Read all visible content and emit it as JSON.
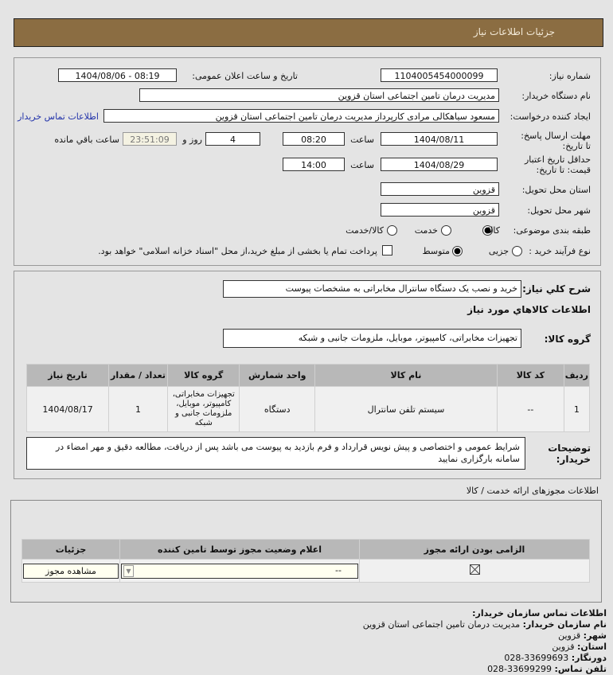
{
  "header": {
    "title": "جزئیات اطلاعات نیاز"
  },
  "form": {
    "need_number_label": "شماره نیاز:",
    "need_number": "1104005454000099",
    "announce_label": "تاریخ و ساعت اعلان عمومی:",
    "announce_value": "1404/08/06 - 08:19",
    "buyer_label": "نام دستگاه خریدار:",
    "buyer_value": "مدیریت درمان تامین اجتماعی استان قزوین",
    "creator_label": "ایجاد کننده درخواست:",
    "creator_value": "مسعود سیاهکالی مرادی کارپرداز مدیریت درمان تامین اجتماعی استان قزوین",
    "contact_link": "اطلاعات تماس خریدار",
    "deadline_label": "مهلت ارسال پاسخ: تا تاریخ:",
    "deadline_date": "1404/08/11",
    "time_label": "ساعت",
    "deadline_time": "08:20",
    "days": "4",
    "days_label": "روز و",
    "remaining": "23:51:09",
    "remaining_label": "ساعت باقي مانده",
    "validity_label": "حداقل تاریخ اعتبار قیمت: تا تاریخ:",
    "validity_date": "1404/08/29",
    "validity_time": "14:00",
    "province_label": "استان محل تحویل:",
    "province": "قزوین",
    "city_label": "شهر محل تحویل:",
    "city": "قزوین",
    "category_label": "طبقه بندی موضوعی:",
    "category_options": [
      "کالا",
      "خدمت",
      "کالا/خدمت"
    ],
    "category_selected": "کالا",
    "process_label": "نوع فرآیند خرید :",
    "process_options": [
      "جزیی",
      "متوسط"
    ],
    "process_selected": "متوسط",
    "payment_note": "پرداخت تمام یا بخشی از مبلغ خرید،از محل \"اسناد خزانه اسلامی\" خواهد بود."
  },
  "need": {
    "desc_label": "شرح کلي نیاز:",
    "desc": "خرید و نصب یک دستگاه سانترال مخابراتی به مشخصات پیوست",
    "goods_title": "اطلاعات کالاهاي مورد نیاز",
    "group_label": "گروه کالا:",
    "group": "تجهیزات مخابراتی، کامپیوتر، موبایل، ملزومات جانبی و شبکه",
    "columns": [
      "ردیف",
      "کد کالا",
      "نام کالا",
      "واحد شمارش",
      "گروه کالا",
      "تعداد / مقدار",
      "تاریخ نیاز"
    ],
    "rows": [
      [
        "1",
        "--",
        "سیستم تلفن سانترال",
        "دستگاه",
        "تجهیزات مخابراتی، کامپیوتر، موبایل، ملزومات جانبی و شبکه",
        "1",
        "1404/08/17"
      ]
    ],
    "notes_label": "توضیحات خریدار:",
    "notes": "شرایط عمومی و اختصاصی و پیش نویس قرارداد و فرم بازدید به پیوست می باشد پس از دریافت، مطالعه دقیق و مهر امضاء در سامانه بارگزاری نمایید"
  },
  "license": {
    "title": "اطلاعات مجوزهای ارائه خدمت / کالا",
    "columns": [
      "الزامی بودن ارائه مجوز",
      "اعلام وضعیت مجوز توسط تامین کننده",
      "جزئیات"
    ],
    "status_value": "--",
    "view_button": "مشاهده مجوز"
  },
  "contact": {
    "title": "اطلاعات تماس سازمان خریدار:",
    "org_label": "نام سازمان خریدار:",
    "org": "مدیریت درمان تامین اجتماعی استان قزوین",
    "city_label": "شهر:",
    "city": "قزوین",
    "province_label": "استان:",
    "province": "قزوین",
    "fax_label": "دورنگار:",
    "fax": "028-33699693",
    "phone_label": "تلفن تماس:",
    "phone": "028-33699299"
  }
}
